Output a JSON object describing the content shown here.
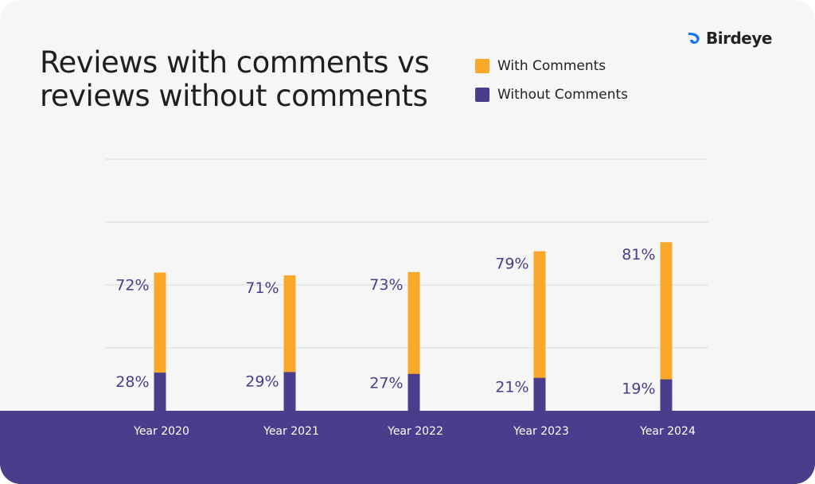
{
  "brand": {
    "name": "Birdeye",
    "logo_icon": "birdeye-bird-icon",
    "logo_color": "#1976f2"
  },
  "title_lines": [
    "Reviews with comments vs",
    "reviews without comments"
  ],
  "legend": [
    {
      "label": "With Comments",
      "color": "#f9a82a"
    },
    {
      "label": "Without Comments",
      "color": "#4a3d8b"
    }
  ],
  "chart_data": {
    "type": "bar",
    "stacked": true,
    "title": "Reviews with comments vs reviews without comments",
    "categories": [
      "Year 2020",
      "Year 2021",
      "Year 2022",
      "Year 2023",
      "Year 2024"
    ],
    "series": [
      {
        "name": "Without Comments",
        "color": "#4a3d8b",
        "values": [
          28,
          29,
          27,
          21,
          19
        ],
        "labels": [
          "28%",
          "29%",
          "27%",
          "21%",
          "19%"
        ]
      },
      {
        "name": "With Comments",
        "color": "#f9a82a",
        "values": [
          72,
          71,
          73,
          79,
          81
        ],
        "labels": [
          "72%",
          "71%",
          "73%",
          "79%",
          "81%"
        ]
      }
    ],
    "visual_totals": [
      0.293,
      0.287,
      0.294,
      0.338,
      0.357
    ],
    "grid": true,
    "legend_position": "top-right"
  }
}
